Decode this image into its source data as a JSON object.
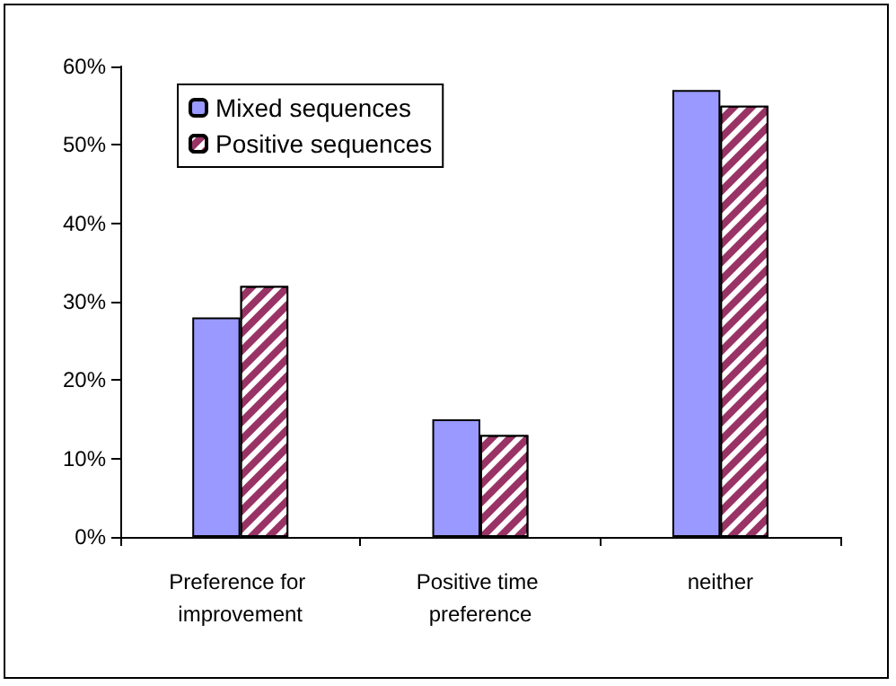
{
  "chart_data": {
    "type": "bar",
    "categories": [
      "Preference for improvement",
      "Positive time preference",
      "neither"
    ],
    "series": [
      {
        "name": "Mixed sequences",
        "color": "#9999ff",
        "values": [
          28,
          15,
          57
        ]
      },
      {
        "name": "Positive sequences",
        "color": "#993366",
        "values": [
          32,
          13,
          55
        ]
      }
    ],
    "ylim": [
      0,
      60
    ],
    "yticks": [
      {
        "value": 0,
        "label": "0%"
      },
      {
        "value": 10,
        "label": "10%"
      },
      {
        "value": 20,
        "label": "20%"
      },
      {
        "value": 30,
        "label": "30%"
      },
      {
        "value": 40,
        "label": "40%"
      },
      {
        "value": 50,
        "label": "50%"
      },
      {
        "value": 60,
        "label": "60%"
      }
    ],
    "grid": false,
    "legend": "top left"
  }
}
